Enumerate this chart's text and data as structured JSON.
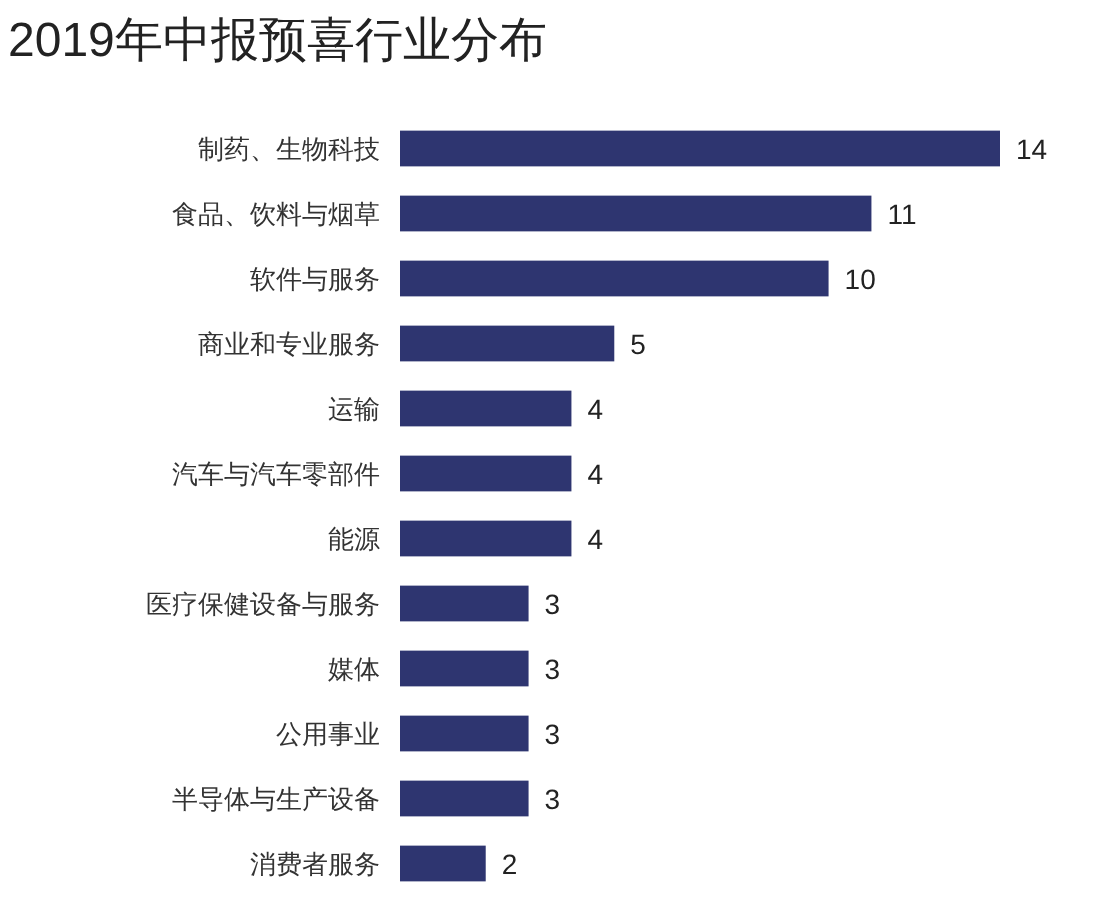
{
  "chart_data": {
    "type": "bar",
    "orientation": "horizontal",
    "title": "2019年中报预喜行业分布",
    "categories": [
      "制药、生物科技",
      "食品、饮料与烟草",
      "软件与服务",
      "商业和专业服务",
      "运输",
      "汽车与汽车零部件",
      "能源",
      "医疗保健设备与服务",
      "媒体",
      "公用事业",
      "半导体与生产设备",
      "消费者服务"
    ],
    "values": [
      14,
      11,
      10,
      5,
      4,
      4,
      4,
      3,
      3,
      3,
      3,
      2
    ],
    "color": "#2e3570",
    "data_labels": true
  }
}
